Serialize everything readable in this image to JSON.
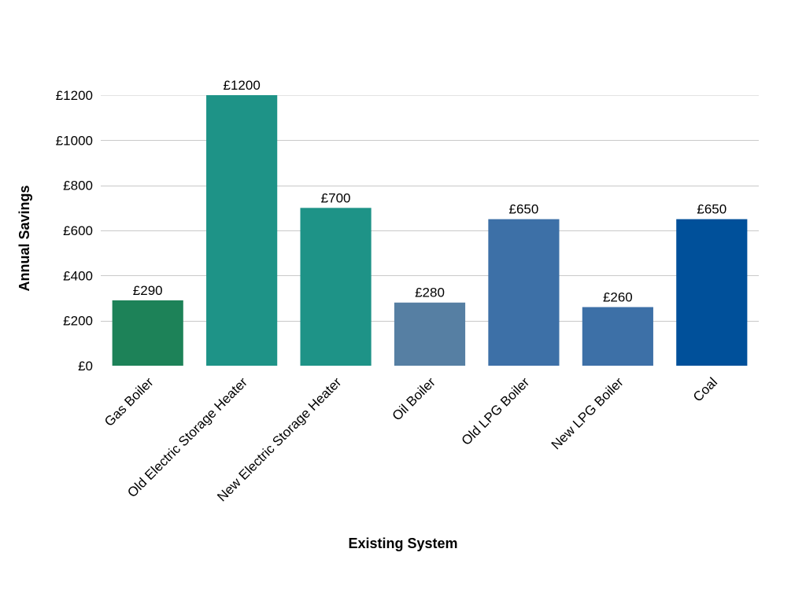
{
  "chart_data": {
    "type": "bar",
    "title": "",
    "xlabel": "Existing System",
    "ylabel": "Annual Savings",
    "categories": [
      "Gas Boiler",
      "Old Electric Storage Heater",
      "New Electric Storage Heater",
      "Oil Boiler",
      "Old LPG Boiler",
      "New LPG Boiler",
      "Coal"
    ],
    "values": [
      290,
      1200,
      700,
      280,
      650,
      260,
      650
    ],
    "data_labels": [
      "£290",
      "£1200",
      "£700",
      "£280",
      "£650",
      "£260",
      "£650"
    ],
    "bar_colors": [
      "#1d8258",
      "#1e9387",
      "#1e9387",
      "#567fa3",
      "#3d70a7",
      "#3d70a7",
      "#00509a"
    ],
    "ylim": [
      0,
      1200
    ],
    "yticks": [
      0,
      200,
      400,
      600,
      800,
      1000,
      1200
    ],
    "ytick_labels": [
      "£0",
      "£200",
      "£400",
      "£600",
      "£800",
      "£1000",
      "£1200"
    ],
    "grid": true,
    "legend": "none"
  }
}
